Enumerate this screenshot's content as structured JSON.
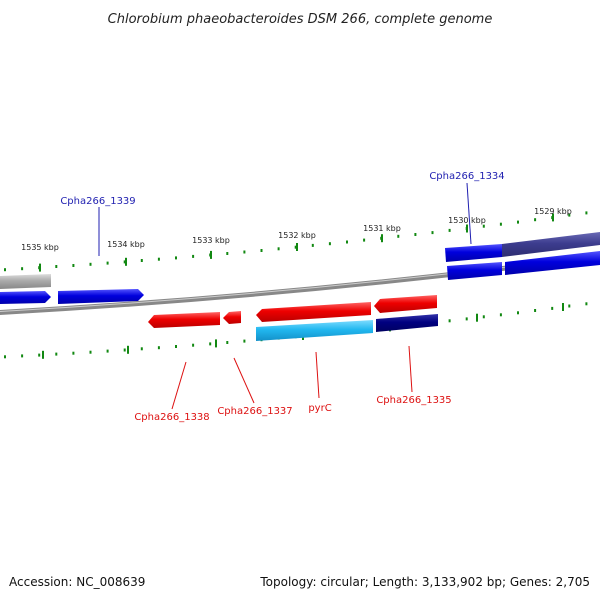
{
  "title": "Chlorobium phaeobacteroides DSM 266, complete genome",
  "ticks": [
    "1535 kbp",
    "1534 kbp",
    "1533 kbp",
    "1532 kbp",
    "1531 kbp",
    "1530 kbp",
    "1529 kbp"
  ],
  "gene_labels": {
    "cpha1339": "Cpha266_1339",
    "cpha1334": "Cpha266_1334",
    "cpha1338": "Cpha266_1338",
    "cpha1337": "Cpha266_1337",
    "pyrC": "pyrC",
    "cpha1335": "Cpha266_1335"
  },
  "footer": {
    "accession": "Accession: NC_008639",
    "summary": "Topology: circular; Length: 3,133,902 bp; Genes: 2,705"
  },
  "colors": {
    "forward_gene": "#0000dd",
    "reverse_gene": "#ee0000",
    "cyan_gene": "#22b8f0",
    "navy_gene": "#000080",
    "slate_gene": "#3d3d8f",
    "gray_gene": "#aaaaaa",
    "backbone": "#777777",
    "tick": "#118811"
  }
}
